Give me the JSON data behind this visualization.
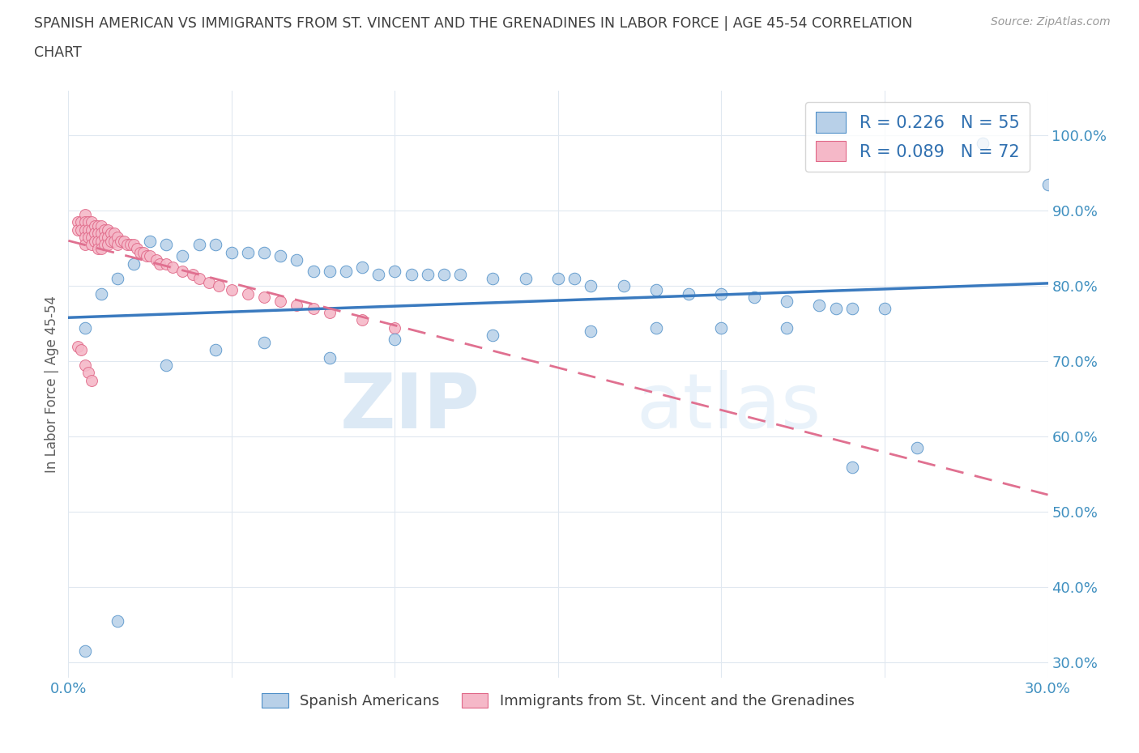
{
  "title_line1": "SPANISH AMERICAN VS IMMIGRANTS FROM ST. VINCENT AND THE GRENADINES IN LABOR FORCE | AGE 45-54 CORRELATION",
  "title_line2": "CHART",
  "source": "Source: ZipAtlas.com",
  "ylabel": "In Labor Force | Age 45-54",
  "xlim": [
    0.0,
    0.3
  ],
  "ylim": [
    0.28,
    1.06
  ],
  "R_blue": 0.226,
  "N_blue": 55,
  "R_pink": 0.089,
  "N_pink": 72,
  "blue_scatter_color": "#b8d0e8",
  "blue_edge_color": "#5090c8",
  "blue_line_color": "#3a7abf",
  "pink_scatter_color": "#f5b8c8",
  "pink_edge_color": "#e06888",
  "pink_line_color": "#e07090",
  "legend_label_blue": "Spanish Americans",
  "legend_label_pink": "Immigrants from St. Vincent and the Grenadines",
  "watermark_zip": "ZIP",
  "watermark_atlas": "atlas",
  "background_color": "#ffffff",
  "grid_color": "#e0e8f0",
  "title_color": "#404040",
  "axis_label_color": "#606060",
  "tick_color": "#4090c0",
  "blue_x": [
    0.005,
    0.01,
    0.015,
    0.02,
    0.025,
    0.03,
    0.035,
    0.04,
    0.045,
    0.05,
    0.055,
    0.06,
    0.065,
    0.07,
    0.075,
    0.08,
    0.085,
    0.09,
    0.095,
    0.1,
    0.105,
    0.11,
    0.115,
    0.12,
    0.13,
    0.14,
    0.15,
    0.155,
    0.16,
    0.17,
    0.18,
    0.19,
    0.2,
    0.21,
    0.22,
    0.23,
    0.235,
    0.24,
    0.25,
    0.28,
    0.3,
    0.005,
    0.015,
    0.03,
    0.045,
    0.06,
    0.08,
    0.1,
    0.13,
    0.16,
    0.18,
    0.2,
    0.22,
    0.24,
    0.26
  ],
  "blue_y": [
    0.745,
    0.79,
    0.81,
    0.83,
    0.86,
    0.855,
    0.84,
    0.855,
    0.855,
    0.845,
    0.845,
    0.845,
    0.84,
    0.835,
    0.82,
    0.82,
    0.82,
    0.825,
    0.815,
    0.82,
    0.815,
    0.815,
    0.815,
    0.815,
    0.81,
    0.81,
    0.81,
    0.81,
    0.8,
    0.8,
    0.795,
    0.79,
    0.79,
    0.785,
    0.78,
    0.775,
    0.77,
    0.77,
    0.77,
    0.99,
    0.935,
    0.315,
    0.355,
    0.695,
    0.715,
    0.725,
    0.705,
    0.73,
    0.735,
    0.74,
    0.745,
    0.745,
    0.745,
    0.56,
    0.585
  ],
  "pink_x": [
    0.003,
    0.003,
    0.004,
    0.004,
    0.005,
    0.005,
    0.005,
    0.005,
    0.005,
    0.006,
    0.006,
    0.006,
    0.007,
    0.007,
    0.007,
    0.007,
    0.008,
    0.008,
    0.008,
    0.009,
    0.009,
    0.009,
    0.009,
    0.01,
    0.01,
    0.01,
    0.01,
    0.011,
    0.011,
    0.011,
    0.012,
    0.012,
    0.012,
    0.013,
    0.013,
    0.014,
    0.014,
    0.015,
    0.015,
    0.016,
    0.017,
    0.018,
    0.019,
    0.02,
    0.021,
    0.022,
    0.023,
    0.024,
    0.025,
    0.027,
    0.028,
    0.03,
    0.032,
    0.035,
    0.038,
    0.04,
    0.043,
    0.046,
    0.05,
    0.055,
    0.06,
    0.065,
    0.07,
    0.075,
    0.08,
    0.09,
    0.1,
    0.003,
    0.004,
    0.005,
    0.006,
    0.007
  ],
  "pink_y": [
    0.885,
    0.875,
    0.885,
    0.875,
    0.895,
    0.885,
    0.875,
    0.865,
    0.855,
    0.885,
    0.875,
    0.865,
    0.885,
    0.875,
    0.865,
    0.855,
    0.88,
    0.87,
    0.86,
    0.88,
    0.87,
    0.86,
    0.85,
    0.88,
    0.87,
    0.86,
    0.85,
    0.875,
    0.865,
    0.855,
    0.875,
    0.865,
    0.855,
    0.87,
    0.86,
    0.87,
    0.86,
    0.865,
    0.855,
    0.86,
    0.86,
    0.855,
    0.855,
    0.855,
    0.85,
    0.845,
    0.845,
    0.84,
    0.84,
    0.835,
    0.83,
    0.83,
    0.825,
    0.82,
    0.815,
    0.81,
    0.805,
    0.8,
    0.795,
    0.79,
    0.785,
    0.78,
    0.775,
    0.77,
    0.765,
    0.755,
    0.745,
    0.72,
    0.715,
    0.695,
    0.685,
    0.675
  ]
}
